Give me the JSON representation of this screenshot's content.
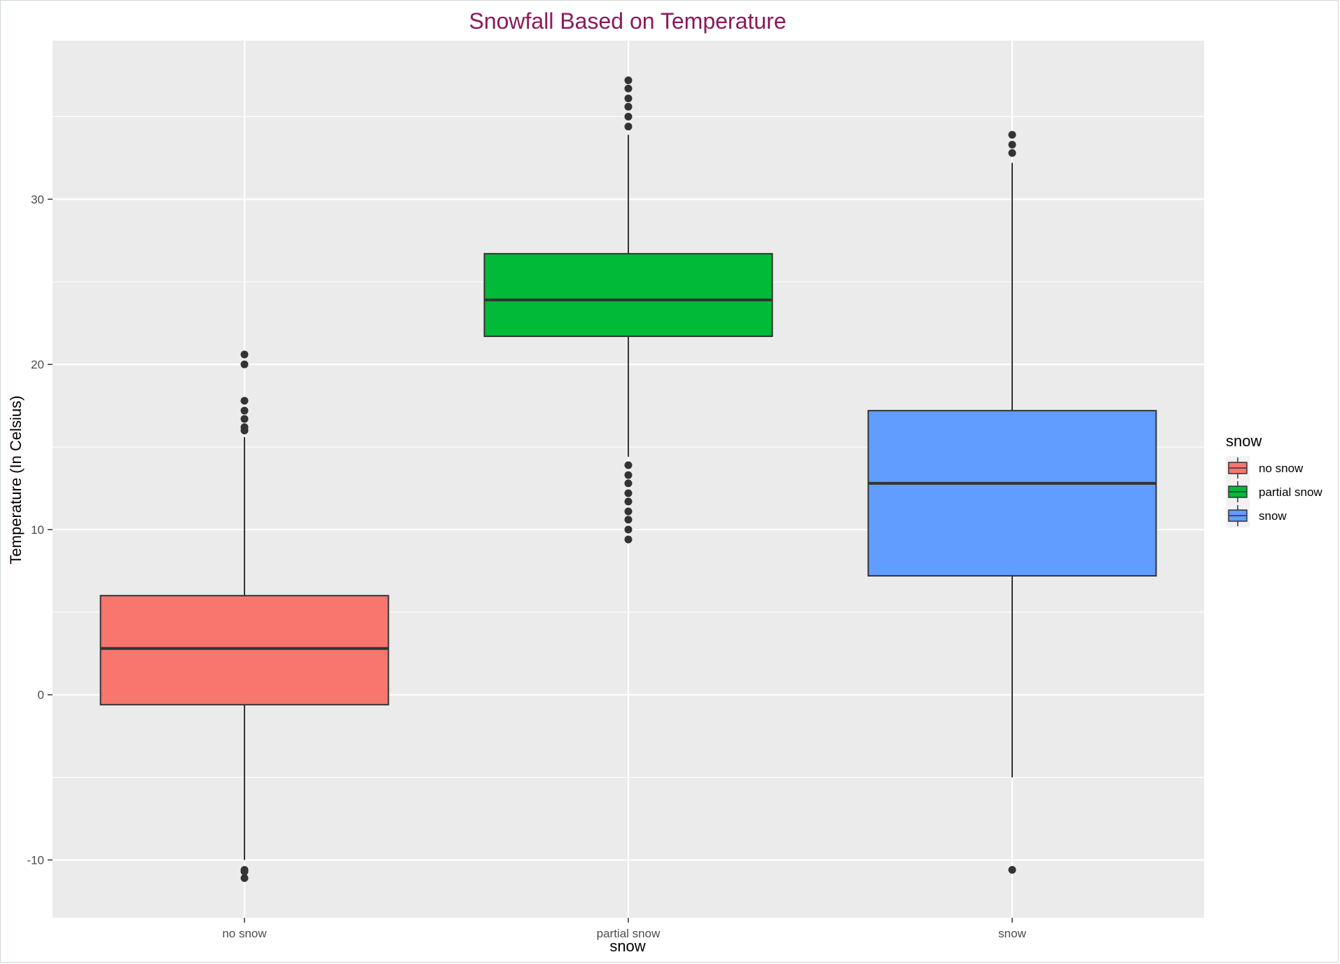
{
  "chart_data": {
    "type": "box",
    "title": "Snowfall Based on Temperature",
    "xlabel": "snow",
    "ylabel": "Temperature (In Celsius)",
    "ylim": [
      -13.5,
      39.6
    ],
    "y_ticks": [
      -10,
      0,
      10,
      20,
      30
    ],
    "y_tick_labels": [
      "-10",
      "0",
      "10",
      "20",
      "30"
    ],
    "categories": [
      "no snow",
      "partial snow",
      "snow"
    ],
    "legend": {
      "title": "snow",
      "position": "right",
      "items": [
        "no snow",
        "partial snow",
        "snow"
      ]
    },
    "grid": true,
    "colors": {
      "title": "#8b1a5b",
      "panel": "#ebebeb",
      "grid": "#ffffff",
      "outline": "#333333",
      "outlier": "#333333",
      "fills": [
        "#f8766d",
        "#00ba38",
        "#619cff"
      ]
    },
    "boxes": [
      {
        "category": "no snow",
        "whisker_low": -10.0,
        "q1": -0.6,
        "median": 2.8,
        "q3": 6.0,
        "whisker_high": 15.6,
        "outliers": [
          20.6,
          20.0,
          17.8,
          17.2,
          16.7,
          16.2,
          16.0,
          -10.6,
          -10.7,
          -11.1
        ]
      },
      {
        "category": "partial snow",
        "whisker_low": 14.4,
        "q1": 21.7,
        "median": 23.9,
        "q3": 26.7,
        "whisker_high": 33.9,
        "outliers": [
          37.2,
          36.7,
          36.1,
          35.6,
          35.0,
          34.4,
          13.9,
          13.3,
          12.8,
          12.2,
          11.7,
          11.1,
          10.6,
          10.0,
          9.4
        ]
      },
      {
        "category": "snow",
        "whisker_low": -5.0,
        "q1": 7.2,
        "median": 12.8,
        "q3": 17.2,
        "whisker_high": 32.2,
        "outliers": [
          33.9,
          33.3,
          32.8,
          -10.6
        ]
      }
    ]
  }
}
